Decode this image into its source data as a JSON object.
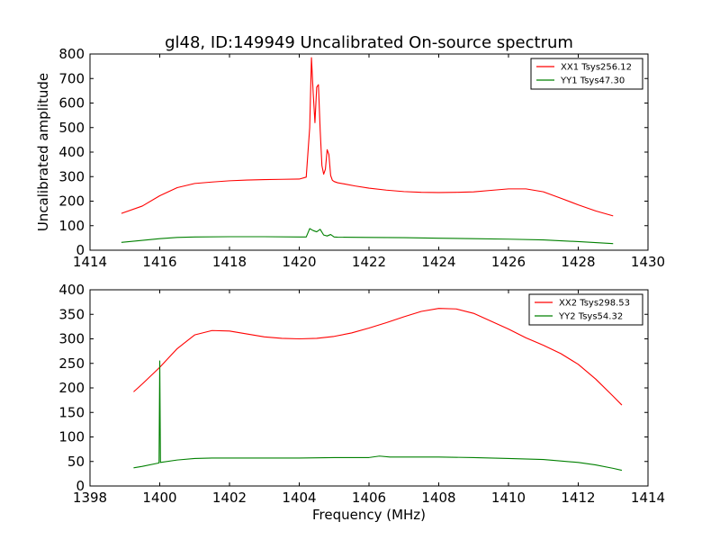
{
  "figure": {
    "title": "gl48, ID:149949 Uncalibrated On-source spectrum",
    "ylabel": "Uncalibrated amplitude",
    "xlabel": "Frequency (MHz)"
  },
  "chart_data": [
    {
      "type": "line",
      "xlim": [
        1414,
        1430
      ],
      "ylim": [
        0,
        800
      ],
      "xticks": [
        1414,
        1416,
        1418,
        1420,
        1422,
        1424,
        1426,
        1428,
        1430
      ],
      "yticks": [
        0,
        100,
        200,
        300,
        400,
        500,
        600,
        700,
        800
      ],
      "legend_position": "top-right",
      "series": [
        {
          "name": "XX1 Tsys256.12",
          "color": "#ff0000",
          "x": [
            1414.9,
            1415.5,
            1416,
            1416.5,
            1417,
            1417.5,
            1418,
            1418.5,
            1419,
            1419.5,
            1420.0,
            1420.2,
            1420.3,
            1420.35,
            1420.4,
            1420.45,
            1420.5,
            1420.55,
            1420.6,
            1420.65,
            1420.7,
            1420.75,
            1420.8,
            1420.85,
            1420.9,
            1420.95,
            1421.0,
            1421.1,
            1421.3,
            1421.6,
            1422,
            1422.5,
            1423,
            1423.5,
            1424,
            1424.5,
            1425,
            1425.5,
            1426,
            1426.5,
            1427,
            1427.5,
            1428,
            1428.5,
            1429
          ],
          "values": [
            150,
            180,
            222,
            255,
            272,
            278,
            283,
            286,
            288,
            289,
            290,
            298,
            500,
            785,
            640,
            520,
            665,
            675,
            490,
            345,
            310,
            330,
            410,
            390,
            305,
            285,
            280,
            275,
            270,
            262,
            253,
            245,
            239,
            236,
            235,
            236,
            238,
            244,
            250,
            250,
            238,
            212,
            185,
            160,
            140
          ]
        },
        {
          "name": "YY1 Tsys47.30",
          "color": "#008000",
          "x": [
            1414.9,
            1415.5,
            1416,
            1416.5,
            1417,
            1418,
            1419,
            1420,
            1420.2,
            1420.3,
            1420.4,
            1420.5,
            1420.6,
            1420.7,
            1420.8,
            1420.9,
            1421.0,
            1421.1,
            1422,
            1423,
            1424,
            1425,
            1426,
            1427,
            1428,
            1429
          ],
          "values": [
            32,
            40,
            47,
            52,
            54,
            55,
            55,
            54,
            54,
            88,
            80,
            75,
            85,
            62,
            58,
            64,
            54,
            53,
            52,
            51,
            49,
            47,
            45,
            42,
            35,
            27
          ]
        }
      ]
    },
    {
      "type": "line",
      "xlim": [
        1398,
        1414
      ],
      "ylim": [
        0,
        400
      ],
      "xticks": [
        1398,
        1400,
        1402,
        1404,
        1406,
        1408,
        1410,
        1412,
        1414
      ],
      "yticks": [
        0,
        50,
        100,
        150,
        200,
        250,
        300,
        350,
        400
      ],
      "legend_position": "top-right",
      "series": [
        {
          "name": "XX2 Tsys298.53",
          "color": "#ff0000",
          "x": [
            1399.25,
            1399.5,
            1400,
            1400.5,
            1401,
            1401.5,
            1402,
            1402.5,
            1403,
            1403.5,
            1404,
            1404.5,
            1405,
            1405.5,
            1406,
            1406.5,
            1407,
            1407.5,
            1408,
            1408.5,
            1409,
            1409.5,
            1410,
            1410.5,
            1411,
            1411.5,
            1412,
            1412.5,
            1413,
            1413.25
          ],
          "values": [
            192,
            208,
            242,
            280,
            308,
            317,
            316,
            310,
            304,
            301,
            300,
            301,
            305,
            312,
            322,
            333,
            345,
            356,
            362,
            361,
            352,
            336,
            320,
            302,
            287,
            270,
            248,
            218,
            183,
            165
          ]
        },
        {
          "name": "YY2 Tsys54.32",
          "color": "#008000",
          "x": [
            1399.25,
            1399.5,
            1399.98,
            1400.0,
            1400.02,
            1400.5,
            1401,
            1401.5,
            1402,
            1403,
            1404,
            1405,
            1406,
            1406.3,
            1406.6,
            1407,
            1408,
            1409,
            1410,
            1411,
            1412,
            1412.5,
            1413,
            1413.25
          ],
          "values": [
            37,
            40,
            47,
            255,
            48,
            53,
            56,
            57,
            57,
            57,
            57,
            58,
            58,
            61,
            59,
            59,
            59,
            58,
            56,
            54,
            48,
            43,
            36,
            32
          ]
        }
      ]
    }
  ]
}
